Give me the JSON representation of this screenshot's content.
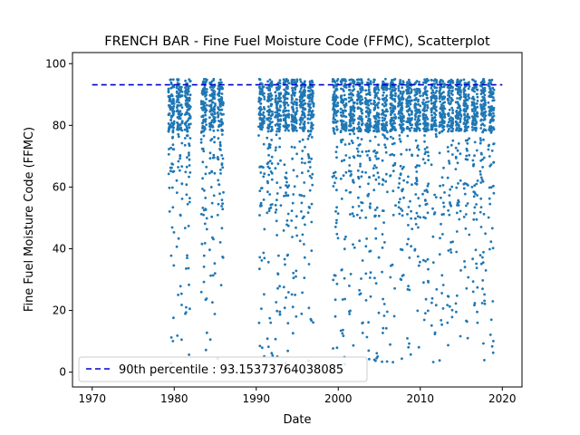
{
  "chart_data": {
    "type": "scatter",
    "title": "FRENCH BAR - Fine Fuel Moisture Code (FFMC), Scatterplot",
    "xlabel": "Date",
    "ylabel": "Fine Fuel Moisture Code (FFMC)",
    "xlim": [
      1967.6,
      2022.4
    ],
    "ylim": [
      -4.8,
      103.6
    ],
    "xticks": [
      1970,
      1980,
      1990,
      2000,
      2010,
      2020
    ],
    "yticks": [
      0,
      20,
      40,
      60,
      80,
      100
    ],
    "grid": false,
    "legend_position": "lower-left",
    "point_color": "#1f77b4",
    "series": [
      {
        "name": "FFMC",
        "seasons": [
          {
            "start": 1979.3,
            "end": 1980.0
          },
          {
            "start": 1980.3,
            "end": 1981.0
          },
          {
            "start": 1981.3,
            "end": 1982.0
          },
          {
            "start": 1983.3,
            "end": 1984.0
          },
          {
            "start": 1984.3,
            "end": 1985.0
          },
          {
            "start": 1985.3,
            "end": 1986.0
          },
          {
            "start": 1990.3,
            "end": 1991.0
          },
          {
            "start": 1991.3,
            "end": 1992.0
          },
          {
            "start": 1992.3,
            "end": 1993.0
          },
          {
            "start": 1993.3,
            "end": 1994.0
          },
          {
            "start": 1994.3,
            "end": 1995.0
          },
          {
            "start": 1995.3,
            "end": 1996.0
          },
          {
            "start": 1996.3,
            "end": 1997.0
          },
          {
            "start": 1999.3,
            "end": 2000.0
          },
          {
            "start": 2000.3,
            "end": 2001.0
          },
          {
            "start": 2001.3,
            "end": 2002.0
          },
          {
            "start": 2002.3,
            "end": 2003.0
          },
          {
            "start": 2003.3,
            "end": 2004.0
          },
          {
            "start": 2004.3,
            "end": 2005.0
          },
          {
            "start": 2005.3,
            "end": 2006.0
          },
          {
            "start": 2006.3,
            "end": 2007.0
          },
          {
            "start": 2007.3,
            "end": 2008.0
          },
          {
            "start": 2008.3,
            "end": 2009.0
          },
          {
            "start": 2009.3,
            "end": 2010.0
          },
          {
            "start": 2010.3,
            "end": 2011.0
          },
          {
            "start": 2011.3,
            "end": 2012.0
          },
          {
            "start": 2012.3,
            "end": 2013.0
          },
          {
            "start": 2013.3,
            "end": 2014.0
          },
          {
            "start": 2014.3,
            "end": 2015.0
          },
          {
            "start": 2015.3,
            "end": 2016.0
          },
          {
            "start": 2016.3,
            "end": 2017.0
          },
          {
            "start": 2017.3,
            "end": 2018.0
          },
          {
            "start": 2018.3,
            "end": 2019.0
          }
        ]
      },
      {
        "name": "90th percentile : 93.15373764038085",
        "style": "dashed",
        "color": "#0000cc",
        "x": [
          1970,
          2020
        ],
        "y": [
          93.15373764038085,
          93.15373764038085
        ]
      }
    ],
    "legend": [
      "90th percentile : 93.15373764038085"
    ]
  }
}
